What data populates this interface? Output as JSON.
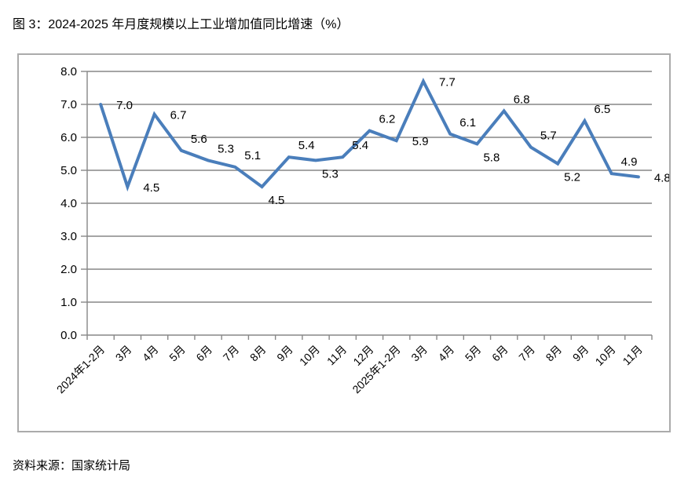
{
  "page": {
    "title": "图 3：2024-2025 年月度规模以上工业增加值同比增速（%）",
    "source": "资料来源：国家统计局"
  },
  "chart_data": {
    "type": "line",
    "title": "2024-2025 年月度规模以上工业增加值同比增速（%）",
    "categories": [
      "2024年1-2月",
      "3月",
      "4月",
      "5月",
      "6月",
      "7月",
      "8月",
      "9月",
      "10月",
      "11月",
      "12月",
      "2025年1-2月",
      "3月",
      "4月",
      "5月",
      "6月",
      "7月",
      "8月",
      "9月",
      "10月",
      "11月"
    ],
    "values": [
      7.0,
      4.5,
      6.7,
      5.6,
      5.3,
      5.1,
      4.5,
      5.4,
      5.3,
      5.4,
      6.2,
      5.9,
      7.7,
      6.1,
      5.8,
      6.8,
      5.7,
      5.2,
      6.5,
      4.9,
      4.8
    ],
    "label_side": [
      "right",
      "right",
      "right",
      "above",
      "above",
      "above",
      "below",
      "above",
      "below",
      "above",
      "above",
      "right",
      "right",
      "above",
      "below",
      "above",
      "above",
      "below",
      "above",
      "above",
      "right"
    ],
    "yticks": [
      0,
      1,
      2,
      3,
      4,
      5,
      6,
      7,
      8
    ],
    "ylim": [
      0,
      8
    ],
    "value_decimals": 1,
    "grid": true,
    "legend": "none",
    "x_label_rotation_deg": 45,
    "colors": {
      "line": "#4A7EBB",
      "grid": "#878787",
      "axis": "#878787",
      "text": "#000000",
      "frame": "#ABABAB"
    },
    "source": "资料来源：国家统计局"
  }
}
